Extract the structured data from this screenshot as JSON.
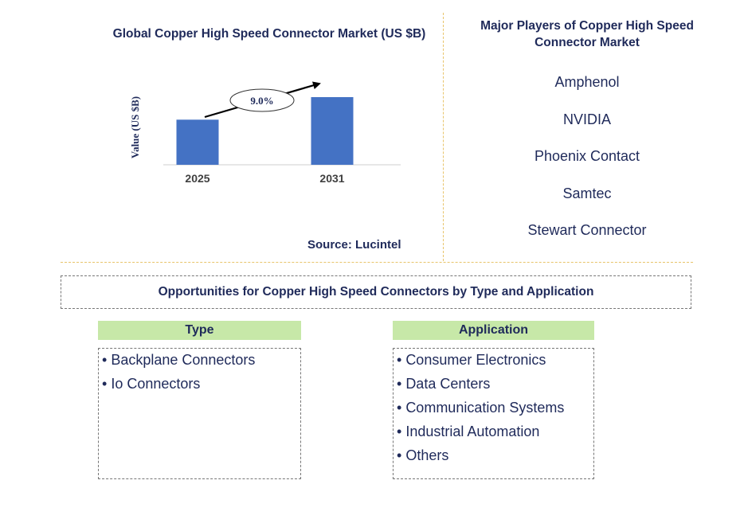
{
  "chart_data": {
    "type": "bar",
    "title": "Global Copper High Speed Connector Market (US $B)",
    "ylabel": "Value (US $B)",
    "xlabel": "",
    "categories": [
      "2025",
      "2031"
    ],
    "values": [
      1.0,
      1.5
    ],
    "ylim": [
      0,
      1.5
    ],
    "annotation": "9.0%",
    "bar_color": "#4472c4",
    "grid": false,
    "legend": "none"
  },
  "source": "Source: Lucintel",
  "players": {
    "title": "Major Players of Copper High Speed Connector Market",
    "items": [
      "Amphenol",
      "NVIDIA",
      "Phoenix Contact",
      "Samtec",
      "Stewart Connector"
    ]
  },
  "opportunities": {
    "title": "Opportunities for Copper High Speed Connectors by Type and Application",
    "type": {
      "header": "Type",
      "items": [
        "Backplane Connectors",
        "Io Connectors"
      ]
    },
    "application": {
      "header": "Application",
      "items": [
        "Consumer Electronics",
        "Data Centers",
        "Communication Systems",
        "Industrial Automation",
        "Others"
      ]
    }
  },
  "colors": {
    "text": "#1f2a5a",
    "header_bg": "#c7e8a8",
    "divider": "#e8c46a"
  }
}
